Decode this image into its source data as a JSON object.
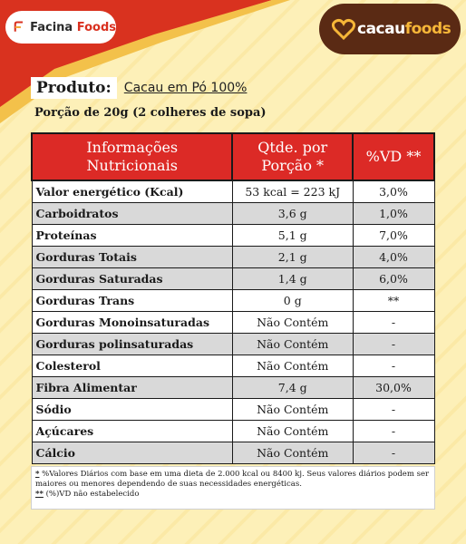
{
  "brands": {
    "left_logo": "Facina Foods",
    "left_logo_first": "Facina",
    "left_logo_second": "Foods",
    "right_logo": "cacaufoods",
    "right_logo_first": "cacau",
    "right_logo_second": "foods",
    "red": "#dc2a26",
    "brown": "#5a2a14",
    "orange": "#f6b638"
  },
  "product": {
    "label": "Produto:",
    "name": "Cacau em Pó 100%"
  },
  "portion": "Porção de 20g (2 colheres de sopa)",
  "table": {
    "headers": {
      "col1_line1": "Informações",
      "col1_line2": "Nutricionais",
      "col2_line1": "Qtde. por",
      "col2_line2": "Porção *",
      "col3": "%VD **"
    },
    "rows": [
      {
        "name": "Valor energético (Kcal)",
        "qty": "53 kcal = 223 kJ",
        "vd": "3,0%"
      },
      {
        "name": "Carboidratos",
        "qty": "3,6 g",
        "vd": "1,0%"
      },
      {
        "name": "Proteínas",
        "qty": "5,1 g",
        "vd": "7,0%"
      },
      {
        "name": "Gorduras Totais",
        "qty": "2,1 g",
        "vd": "4,0%"
      },
      {
        "name": "Gorduras Saturadas",
        "qty": "1,4 g",
        "vd": "6,0%"
      },
      {
        "name": "Gorduras Trans",
        "qty": "0 g",
        "vd": "**"
      },
      {
        "name": "Gorduras Monoinsaturadas",
        "qty": "Não Contém",
        "vd": "-"
      },
      {
        "name": "Gorduras polinsaturadas",
        "qty": "Não Contém",
        "vd": "-"
      },
      {
        "name": "Colesterol",
        "qty": "Não Contém",
        "vd": "-"
      },
      {
        "name": "Fibra Alimentar",
        "qty": "7,4 g",
        "vd": "30,0%"
      },
      {
        "name": "Sódio",
        "qty": "Não Contém",
        "vd": "-"
      },
      {
        "name": "Açúcares",
        "qty": "Não Contém",
        "vd": "-"
      },
      {
        "name": "Cálcio",
        "qty": "Não Contém",
        "vd": "-"
      }
    ]
  },
  "footnotes": {
    "note1_mark": "*",
    "note1_text": " %Valores Diários com base em uma dieta de 2.000 kcal ou 8400 kj. Seus valores diários podem ser maiores ou menores dependendo de suas necessidades energéticas.",
    "note2_mark": "**",
    "note2_text": " (%)VD não estabelecido"
  }
}
